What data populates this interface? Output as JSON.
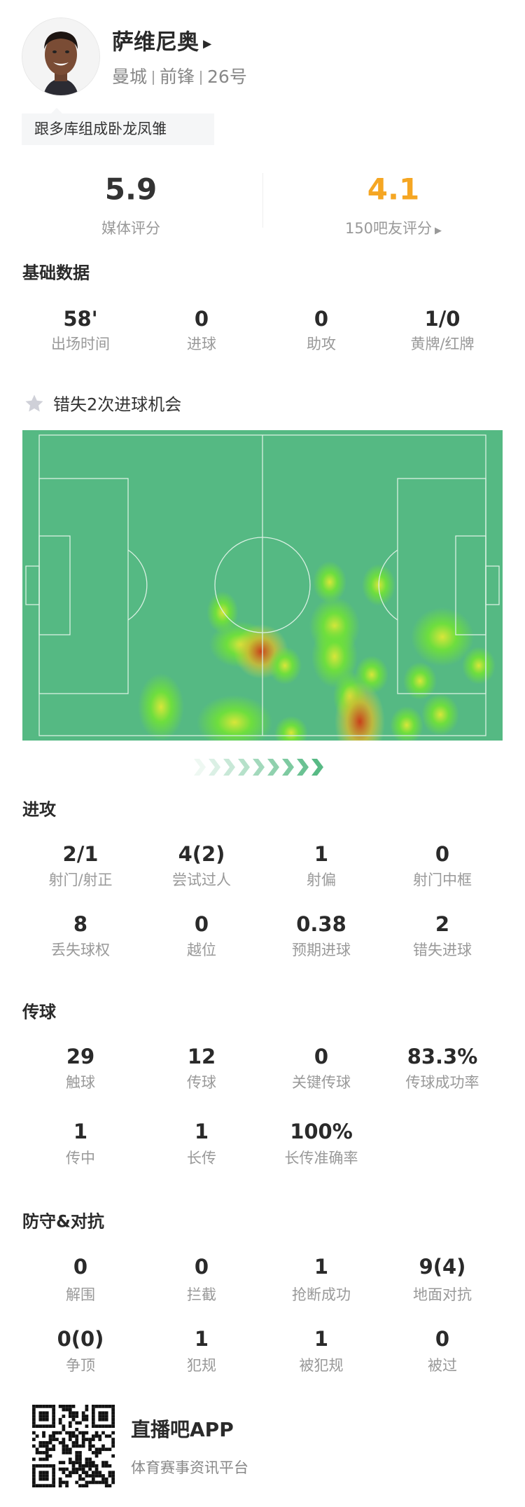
{
  "player": {
    "name": "萨维尼奥",
    "team": "曼城",
    "position": "前锋",
    "number": "26号",
    "tag": "跟多库组成卧龙凤雏"
  },
  "ratings": {
    "media": {
      "value": "5.9",
      "label": "媒体评分"
    },
    "fans": {
      "value": "4.1",
      "label": "150吧友评分",
      "color": "#f5a623"
    }
  },
  "basic": {
    "title": "基础数据",
    "items": [
      {
        "value": "58'",
        "label": "出场时间"
      },
      {
        "value": "0",
        "label": "进球"
      },
      {
        "value": "0",
        "label": "助攻"
      },
      {
        "value": "1/0",
        "label": "黄牌/红牌"
      }
    ]
  },
  "highlight": {
    "icon": "star-icon",
    "text": "错失2次进球机会"
  },
  "heatmap": {
    "pitch_color": "#55b983",
    "line_color": "#d9f0e2",
    "direction_icon": "chevron-right-icon"
  },
  "attack": {
    "title": "进攻",
    "items": [
      {
        "value": "2/1",
        "label": "射门/射正"
      },
      {
        "value": "4(2)",
        "label": "尝试过人"
      },
      {
        "value": "1",
        "label": "射偏"
      },
      {
        "value": "0",
        "label": "射门中框"
      },
      {
        "value": "8",
        "label": "丢失球权"
      },
      {
        "value": "0",
        "label": "越位"
      },
      {
        "value": "0.38",
        "label": "预期进球"
      },
      {
        "value": "2",
        "label": "错失进球"
      }
    ]
  },
  "passing": {
    "title": "传球",
    "items": [
      {
        "value": "29",
        "label": "触球"
      },
      {
        "value": "12",
        "label": "传球"
      },
      {
        "value": "0",
        "label": "关键传球"
      },
      {
        "value": "83.3%",
        "label": "传球成功率"
      },
      {
        "value": "1",
        "label": "传中"
      },
      {
        "value": "1",
        "label": "长传"
      },
      {
        "value": "100%",
        "label": "长传准确率"
      }
    ]
  },
  "defense": {
    "title": "防守&对抗",
    "items": [
      {
        "value": "0",
        "label": "解围"
      },
      {
        "value": "0",
        "label": "拦截"
      },
      {
        "value": "1",
        "label": "抢断成功"
      },
      {
        "value": "9(4)",
        "label": "地面对抗"
      },
      {
        "value": "0(0)",
        "label": "争顶"
      },
      {
        "value": "1",
        "label": "犯规"
      },
      {
        "value": "1",
        "label": "被犯规"
      },
      {
        "value": "0",
        "label": "被过"
      }
    ]
  },
  "footer": {
    "app_name": "直播吧APP",
    "slogan": "体育赛事资讯平台"
  }
}
